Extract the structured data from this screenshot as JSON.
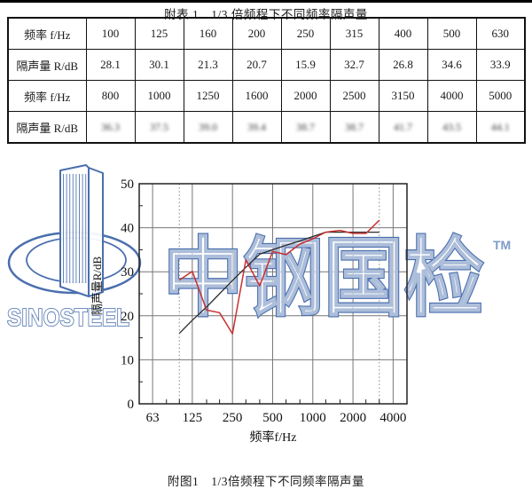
{
  "table_section": {
    "title": "附表 1　1/3 倍频程下不同频率隔声量"
  },
  "table": {
    "rows": [
      {
        "blurred": false,
        "cells": [
          "频率 f/Hz",
          "100",
          "125",
          "160",
          "200",
          "250",
          "315",
          "400",
          "500",
          "630"
        ]
      },
      {
        "blurred": false,
        "cells": [
          "隔声量 R/dB",
          "28.1",
          "30.1",
          "21.3",
          "20.7",
          "15.9",
          "32.7",
          "26.8",
          "34.6",
          "33.9"
        ]
      },
      {
        "blurred": false,
        "cells": [
          "频率 f/Hz",
          "800",
          "1000",
          "1250",
          "1600",
          "2000",
          "2500",
          "3150",
          "4000",
          "5000"
        ]
      },
      {
        "blurred": true,
        "cells": [
          "隔声量 R/dB",
          "36.3",
          "37.5",
          "39.0",
          "39.4",
          "38.7",
          "38.7",
          "41.7",
          "43.5",
          "44.1"
        ]
      }
    ]
  },
  "watermark": {
    "logo_text": "SINOSTEEL",
    "cjk_text": "中钢国检",
    "tm": "TM",
    "color": "#4a6fae",
    "tm_color": "#7d9bc8"
  },
  "chart_data": {
    "type": "line",
    "x_scale": "log",
    "xlabel": "频率f/Hz",
    "ylabel": "隔声量R/dB",
    "xlim": [
      50,
      5080
    ],
    "ylim": [
      0,
      50
    ],
    "x_ticks": [
      63,
      125,
      250,
      500,
      1000,
      2000,
      4000
    ],
    "x_minor_ticks": [
      80,
      100,
      160,
      200,
      315,
      400,
      630,
      800,
      1250,
      1600,
      2500,
      3150
    ],
    "y_ticks": [
      0,
      10,
      20,
      30,
      40,
      50
    ],
    "y_minor_ticks": [
      5,
      15,
      25,
      35,
      45
    ],
    "dotted_vlines": [
      100,
      3150
    ],
    "grid": true,
    "legend": "none",
    "series": [
      {
        "name": "reference-curve",
        "color": "#2b2b2b",
        "x": [
          100,
          125,
          160,
          200,
          250,
          315,
          400,
          500,
          630,
          800,
          1000,
          1250,
          1600,
          2000,
          2500,
          3150
        ],
        "values": [
          16,
          19,
          22,
          25,
          28,
          31,
          34,
          35,
          36,
          37,
          38,
          39,
          39,
          39,
          39,
          39
        ]
      },
      {
        "name": "measured",
        "color": "#c83030",
        "x": [
          100,
          125,
          160,
          200,
          250,
          315,
          400,
          500,
          630,
          800,
          1000,
          1250,
          1600,
          2000,
          2500,
          3150
        ],
        "values": [
          28.1,
          30.1,
          21.3,
          20.7,
          15.9,
          32.7,
          26.8,
          34.6,
          33.9,
          36.3,
          37.5,
          39.0,
          39.4,
          38.7,
          38.7,
          41.7
        ]
      }
    ]
  },
  "caption": "附图1　1/3倍频程下不同频率隔声量"
}
